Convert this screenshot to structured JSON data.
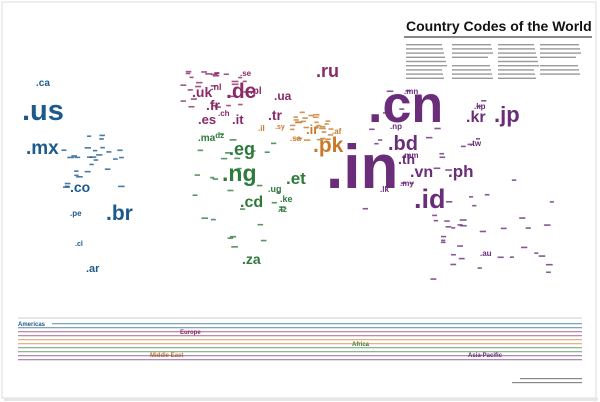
{
  "title": "Country Codes of the World",
  "regions": [
    {
      "name": "Americas",
      "color": "#1d5a8c",
      "codes": [
        ".us",
        ".ca",
        ".mx",
        ".co",
        ".br",
        ".pe",
        ".cl",
        ".ar"
      ]
    },
    {
      "name": "Europe",
      "color": "#8a2a68",
      "codes": [
        ".uk",
        ".de",
        ".fr",
        ".es",
        ".it",
        ".pl",
        ".ua",
        ".ru",
        ".tr",
        ".nl",
        ".se",
        ".ch"
      ]
    },
    {
      "name": "Middle East",
      "color": "#c8792a",
      "codes": [
        ".pk",
        ".ir",
        ".il",
        ".sa",
        ".sy",
        ".af"
      ]
    },
    {
      "name": "Africa",
      "color": "#2d7a3b",
      "codes": [
        ".eg",
        ".ng",
        ".et",
        ".cd",
        ".za",
        ".ma",
        ".ke",
        ".ug",
        ".tz",
        ".dz"
      ]
    },
    {
      "name": "Asia-Pacific",
      "color": "#6a2d7a",
      "codes": [
        ".cn",
        ".in",
        ".jp",
        ".kr",
        ".kp",
        ".bd",
        ".id",
        ".ph",
        ".vn",
        ".th",
        ".mm",
        ".np",
        ".lk",
        ".my",
        ".au",
        ".mn",
        ".tw"
      ]
    }
  ]
}
